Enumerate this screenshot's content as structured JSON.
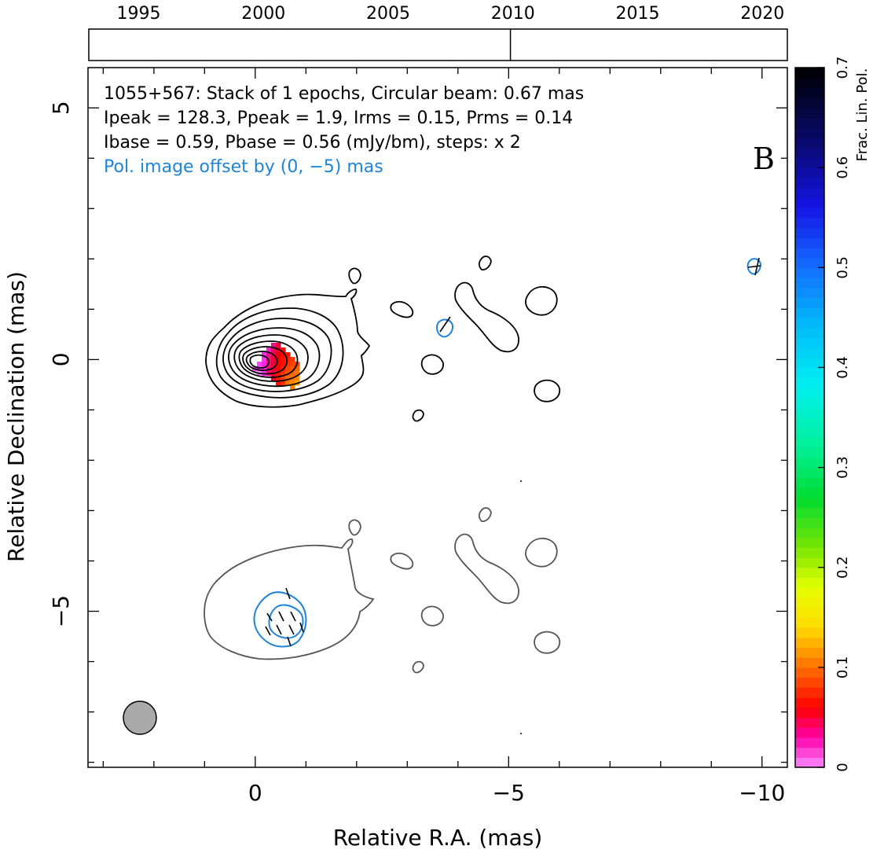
{
  "chart_data": {
    "type": "contour",
    "source": "1055+567",
    "panel_label": "B",
    "info_lines": [
      "1055+567: Stack of 1 epochs, Circular beam: 0.67 mas",
      "Ipeak = 128.3, Ppeak = 1.9, Irms = 0.15, Prms = 0.14",
      "Ibase = 0.59, Pbase = 0.56 (mJy/bm), steps: x 2"
    ],
    "offset_note": "Pol. image offset by (0, −5) mas",
    "xlabel": "Relative R.A. (mas)",
    "ylabel": "Relative Declination (mas)",
    "xlim": [
      3.3,
      -10.5
    ],
    "ylim": [
      -8.1,
      5.8
    ],
    "x_ticks": [
      0,
      -5,
      -10
    ],
    "x_tick_labels": [
      "0",
      "−5",
      "−10"
    ],
    "y_ticks": [
      5,
      0,
      -5
    ],
    "y_tick_labels": [
      "5",
      "0",
      "−5"
    ],
    "epoch_axis": {
      "range": [
        1993,
        2021
      ],
      "tick_labels": [
        "1995",
        "2000",
        "2005",
        "2010",
        "2015",
        "2020"
      ],
      "tick_years": [
        1995,
        2000,
        2005,
        2010,
        2015,
        2020
      ],
      "epochs": [
        2009.9
      ]
    },
    "colorbar": {
      "label": "Frac. Lin. Pol.",
      "range": [
        0,
        0.7
      ],
      "tick_labels": [
        "0",
        "0.1",
        "0.2",
        "0.3",
        "0.4",
        "0.5",
        "0.6",
        "0.7"
      ],
      "tick_values": [
        0,
        0.1,
        0.2,
        0.3,
        0.4,
        0.5,
        0.6,
        0.7
      ]
    },
    "beam": {
      "ra": 2.2,
      "dec": -7.8,
      "diameter_mas": 0.67
    },
    "colors": {
      "total_intensity_contours": "#000000",
      "polarized_contours": "#555555",
      "offset_note": "#1f84d8",
      "beam_fill": "#aaaaaa"
    }
  }
}
